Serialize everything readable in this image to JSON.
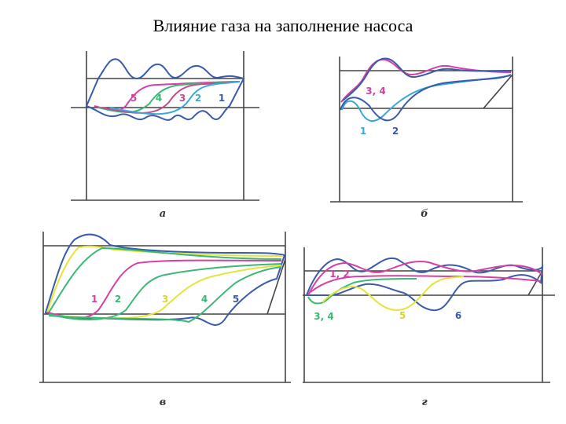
{
  "title": "Влияние газа на заполнение насоса",
  "panels": [
    {
      "label": "а",
      "curve_labels": [
        "5",
        "4",
        "3",
        "2",
        "1"
      ]
    },
    {
      "label": "б",
      "curve_labels": [
        "3, 4",
        "1",
        "2"
      ]
    },
    {
      "label": "в",
      "curve_labels": [
        "1",
        "2",
        "3",
        "4",
        "5"
      ]
    },
    {
      "label": "г",
      "curve_labels": [
        "1, 2",
        "3, 4",
        "5",
        "6"
      ]
    }
  ]
}
